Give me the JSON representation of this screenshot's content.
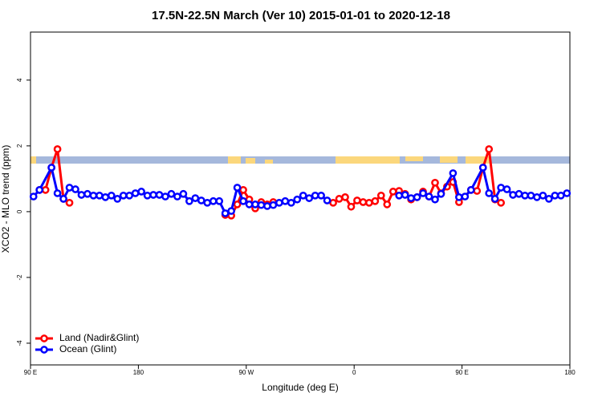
{
  "chart_data": {
    "type": "line",
    "title": "17.5N-22.5N March (Ver 10)   2015-01-01 to 2020-12-18",
    "x_label": "Longitude (deg E)",
    "y_label": "XCO2 - MLO trend (ppm)",
    "xlim": [
      90,
      540
    ],
    "ylim": [
      -4.66,
      5.46
    ],
    "xticks": [
      {
        "value": 90,
        "label": "90 E"
      },
      {
        "value": 180,
        "label": "180"
      },
      {
        "value": 270,
        "label": "90 W"
      },
      {
        "value": 360,
        "label": "0"
      },
      {
        "value": 450,
        "label": "90 E"
      },
      {
        "value": 540,
        "label": "180"
      }
    ],
    "yticks": [
      -4,
      -2,
      0,
      2,
      4
    ],
    "legend": "bottomleft",
    "series": [
      {
        "name": "Land (Nadir&Glint)",
        "color": "#ff0000",
        "x": [
          97.5,
          102.5,
          107.5,
          112.5,
          117.5,
          122.5,
          187.5,
          252.5,
          257.5,
          262.5,
          267.5,
          272.5,
          277.5,
          282.5,
          287.5,
          292.5,
          317.5,
          342.5,
          347.5,
          352.5,
          357.5,
          362.5,
          367.5,
          372.5,
          377.5,
          382.5,
          387.5,
          392.5,
          397.5,
          402.5,
          407.5,
          412.5,
          417.5,
          422.5,
          427.5,
          432.5,
          437.5,
          442.5,
          447.5,
          457.5,
          462.5,
          467.5,
          472.5,
          477.5,
          482.5
        ],
        "values": [
          0.66,
          0.66,
          1.34,
          1.9,
          0.39,
          0.27,
          null,
          -0.1,
          -0.12,
          0.22,
          0.66,
          0.37,
          0.1,
          0.29,
          0.22,
          0.29,
          null,
          0.27,
          0.39,
          0.44,
          0.15,
          0.34,
          0.29,
          0.27,
          0.32,
          0.49,
          0.22,
          0.61,
          0.63,
          0.54,
          0.37,
          0.44,
          0.61,
          0.46,
          0.88,
          0.56,
          0.76,
          0.9,
          0.29,
          0.66,
          0.63,
          1.34,
          1.9,
          0.37,
          0.27
        ]
      },
      {
        "name": "Ocean (Glint)",
        "color": "#0000ff",
        "x": [
          92.5,
          97.5,
          107.5,
          112.5,
          117.5,
          122.5,
          127.5,
          132.5,
          137.5,
          142.5,
          147.5,
          152.5,
          157.5,
          162.5,
          167.5,
          172.5,
          177.5,
          182.5,
          187.5,
          192.5,
          197.5,
          202.5,
          207.5,
          212.5,
          217.5,
          222.5,
          227.5,
          232.5,
          237.5,
          242.5,
          247.5,
          252.5,
          257.5,
          262.5,
          267.5,
          272.5,
          277.5,
          282.5,
          287.5,
          292.5,
          297.5,
          302.5,
          307.5,
          312.5,
          317.5,
          322.5,
          327.5,
          332.5,
          337.5,
          367.5,
          397.5,
          402.5,
          407.5,
          412.5,
          417.5,
          422.5,
          427.5,
          432.5,
          442.5,
          447.5,
          452.5,
          457.5,
          467.5,
          472.5,
          477.5,
          482.5,
          487.5,
          492.5,
          497.5,
          502.5,
          507.5,
          512.5,
          517.5,
          522.5,
          527.5,
          532.5,
          537.5
        ],
        "values": [
          0.46,
          0.66,
          1.34,
          0.56,
          0.39,
          0.73,
          0.68,
          0.51,
          0.54,
          0.49,
          0.49,
          0.44,
          0.49,
          0.39,
          0.49,
          0.49,
          0.56,
          0.61,
          0.49,
          0.51,
          0.51,
          0.46,
          0.54,
          0.46,
          0.54,
          0.32,
          0.41,
          0.34,
          0.27,
          0.32,
          0.32,
          -0.05,
          0.02,
          0.73,
          0.32,
          0.22,
          0.22,
          0.2,
          0.17,
          0.2,
          0.27,
          0.32,
          0.27,
          0.37,
          0.49,
          0.41,
          0.49,
          0.49,
          0.34,
          null,
          0.49,
          0.51,
          0.41,
          0.44,
          0.56,
          0.46,
          0.37,
          0.54,
          1.17,
          0.44,
          0.46,
          0.66,
          1.34,
          0.56,
          0.39,
          0.73,
          0.68,
          0.51,
          0.54,
          0.49,
          0.49,
          0.44,
          0.49,
          0.39,
          0.49,
          0.49,
          0.56
        ]
      }
    ]
  }
}
